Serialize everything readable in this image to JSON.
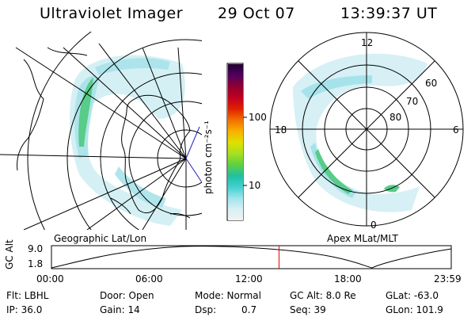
{
  "header": {
    "title": "Ultraviolet Imager",
    "date": "29 Oct 07",
    "time": "13:39:37 UT"
  },
  "left_panel": {
    "label": "Geographic Lat/Lon"
  },
  "right_panel": {
    "label": "Apex MLat/MLT",
    "mlt_labels": [
      "12",
      "18",
      "6",
      "0"
    ],
    "mlat_labels": [
      "60",
      "70",
      "80"
    ]
  },
  "colorbar": {
    "unit_label": "photon cm⁻²s⁻¹",
    "ticks": [
      "100",
      "10"
    ],
    "scale": "log",
    "colors": [
      "#f2f2f2",
      "#d8f0f4",
      "#a0e4ec",
      "#40d0d0",
      "#20c0a0",
      "#60d040",
      "#a8e020",
      "#e0e000",
      "#f8b000",
      "#f07000",
      "#e02000",
      "#c00020",
      "#900030",
      "#500060",
      "#200030"
    ]
  },
  "timeline": {
    "ylabel": "GC Alt",
    "y_ticks": [
      "9.0",
      "1.8"
    ],
    "x_ticks": [
      "00:00",
      "06:00",
      "12:00",
      "18:00",
      "23:59"
    ],
    "current_time_fraction": 0.5692,
    "marker_color": "#e00000"
  },
  "info": {
    "flt": "Flt: LBHL",
    "door": "Door: Open",
    "mode": "Mode: Normal",
    "gc_alt": "GC Alt: 8.0 Re",
    "glat": "GLat: -63.0",
    "ip": "IP: 36.0",
    "gain": "Gain: 14",
    "dsp_label": "Dsp:",
    "dsp_value": "0.7",
    "seq": "Seq: 39",
    "glon": "GLon: 101.9"
  }
}
